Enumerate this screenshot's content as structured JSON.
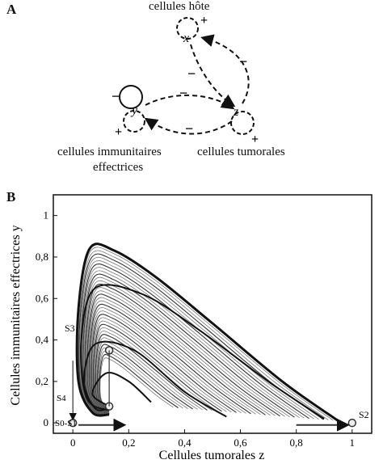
{
  "panel_a": {
    "letter": "A",
    "nodes": {
      "x": {
        "name": "x",
        "label": "cellules hôte"
      },
      "y": {
        "name": "y",
        "label_line1": "cellules immunitaires",
        "label_line2": "effectrices"
      },
      "z": {
        "name": "z",
        "label": "cellules tumorales"
      }
    },
    "signs": {
      "x_self": "+",
      "x_to_z": "−",
      "z_to_x": "−",
      "y_self_top": "−",
      "y_self_bottom": "+",
      "y_to_z": "−",
      "z_to_y": "−",
      "z_self": "+"
    }
  },
  "panel_b": {
    "letter": "B",
    "x_axis_label": "Cellules tumorales z",
    "y_axis_label": "Cellules immunitaires effectrices y",
    "x_ticks": [
      "0",
      "0,2",
      "0,4",
      "0,6",
      "0,8",
      "1"
    ],
    "y_ticks": [
      "0",
      "0,2",
      "0,4",
      "0,6",
      "0,8",
      "1"
    ],
    "points": {
      "s3": "S3",
      "s4": "S4",
      "s0_s1": "S0-S1",
      "s2": "S2"
    }
  },
  "chart_data": {
    "type": "line",
    "title": "",
    "xlabel": "Cellules tumorales z",
    "ylabel": "Cellules immunitaires effectrices y",
    "xlim": [
      -0.07,
      1.07
    ],
    "ylim": [
      -0.05,
      1.1
    ],
    "fixed_points": [
      {
        "name": "S0-S1",
        "z": 0.0,
        "y": 0.0
      },
      {
        "name": "S2",
        "z": 1.0,
        "y": 0.0
      },
      {
        "name": "S3",
        "z": 0.13,
        "y": 0.35
      },
      {
        "name": "S4",
        "z": 0.13,
        "y": 0.08
      }
    ],
    "series": [
      {
        "values": [
          [
            0.95,
            0.01
          ],
          [
            0.75,
            0.2
          ],
          [
            0.5,
            0.48
          ],
          [
            0.3,
            0.7
          ],
          [
            0.15,
            0.83
          ],
          [
            0.06,
            0.84
          ],
          [
            0.02,
            0.55
          ],
          [
            0.02,
            0.2
          ],
          [
            0.07,
            0.05
          ],
          [
            0.13,
            0.04
          ]
        ]
      },
      {
        "values": [
          [
            0.9,
            0.02
          ],
          [
            0.7,
            0.2
          ],
          [
            0.45,
            0.45
          ],
          [
            0.25,
            0.62
          ],
          [
            0.08,
            0.65
          ],
          [
            0.03,
            0.4
          ],
          [
            0.05,
            0.12
          ],
          [
            0.13,
            0.06
          ]
        ]
      },
      {
        "values": [
          [
            0.55,
            0.03
          ],
          [
            0.4,
            0.15
          ],
          [
            0.22,
            0.35
          ],
          [
            0.08,
            0.38
          ],
          [
            0.04,
            0.2
          ],
          [
            0.08,
            0.07
          ],
          [
            0.13,
            0.07
          ]
        ]
      },
      {
        "values": [
          [
            0.28,
            0.1
          ],
          [
            0.2,
            0.2
          ],
          [
            0.12,
            0.24
          ],
          [
            0.07,
            0.14
          ],
          [
            0.13,
            0.08
          ]
        ]
      }
    ]
  }
}
